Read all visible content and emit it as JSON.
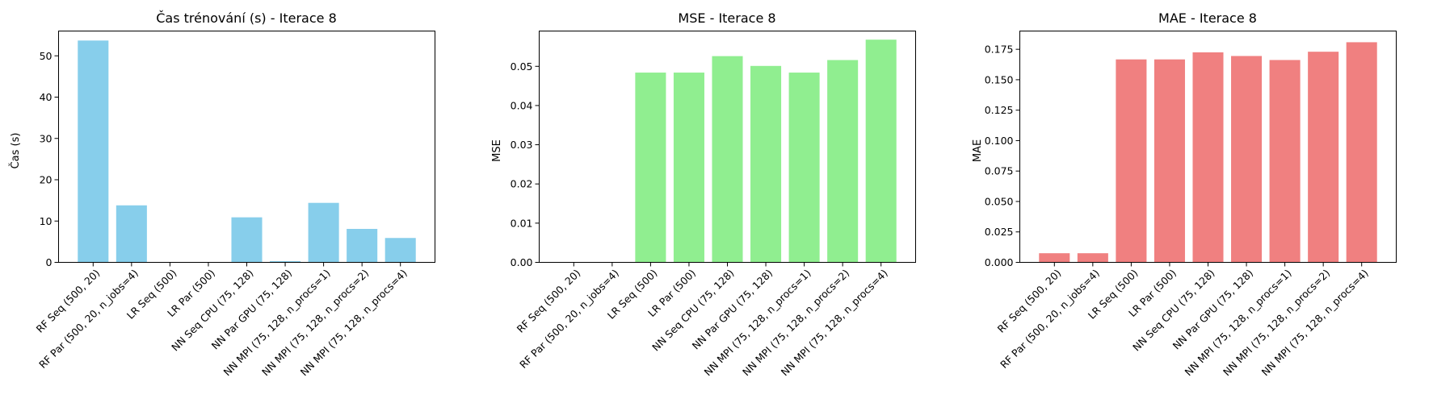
{
  "chart_data": [
    {
      "type": "bar",
      "title": "Čas trénování (s) - Iterace 8",
      "xlabel": "",
      "ylabel": "Čas (s)",
      "color": "#87CEEB",
      "ylim": [
        0,
        56
      ],
      "yticks": [
        "0",
        "10",
        "20",
        "30",
        "40",
        "50"
      ],
      "categories": [
        "RF Seq (500, 20)",
        "RF Par (500, 20, n_jobs=4)",
        "LR Seq (500)",
        "LR Par (500)",
        "NN Seq CPU (75, 128)",
        "NN Par GPU (75, 128)",
        "NN MPI (75, 128, n_procs=1)",
        "NN MPI (75, 128, n_procs=2)",
        "NN MPI (75, 128, n_procs=4)"
      ],
      "values": [
        53.7,
        13.8,
        0.05,
        0.05,
        10.9,
        0.3,
        14.4,
        8.1,
        5.9
      ]
    },
    {
      "type": "bar",
      "title": "MSE - Iterace 8",
      "xlabel": "",
      "ylabel": "MSE",
      "color": "#90EE90",
      "ylim": [
        0,
        0.059
      ],
      "yticks": [
        "0.00",
        "0.01",
        "0.02",
        "0.03",
        "0.04",
        "0.05"
      ],
      "categories": [
        "RF Seq (500, 20)",
        "RF Par (500, 20, n_jobs=4)",
        "LR Seq (500)",
        "LR Par (500)",
        "NN Seq CPU (75, 128)",
        "NN Par GPU (75, 128)",
        "NN MPI (75, 128, n_procs=1)",
        "NN MPI (75, 128, n_procs=2)",
        "NN MPI (75, 128, n_procs=4)"
      ],
      "values": [
        0.0001,
        0.0001,
        0.0484,
        0.0484,
        0.0526,
        0.0501,
        0.0484,
        0.0516,
        0.0568
      ]
    },
    {
      "type": "bar",
      "title": "MAE - Iterace 8",
      "xlabel": "",
      "ylabel": "MAE",
      "color": "#F08080",
      "ylim": [
        0,
        0.19
      ],
      "yticks": [
        "0.000",
        "0.025",
        "0.050",
        "0.075",
        "0.100",
        "0.125",
        "0.150",
        "0.175"
      ],
      "categories": [
        "RF Seq (500, 20)",
        "RF Par (500, 20, n_jobs=4)",
        "LR Seq (500)",
        "LR Par (500)",
        "NN Seq CPU (75, 128)",
        "NN Par GPU (75, 128)",
        "NN MPI (75, 128, n_procs=1)",
        "NN MPI (75, 128, n_procs=2)",
        "NN MPI (75, 128, n_procs=4)"
      ],
      "values": [
        0.0075,
        0.0075,
        0.1667,
        0.1667,
        0.1725,
        0.1695,
        0.1662,
        0.173,
        0.1808
      ]
    }
  ]
}
